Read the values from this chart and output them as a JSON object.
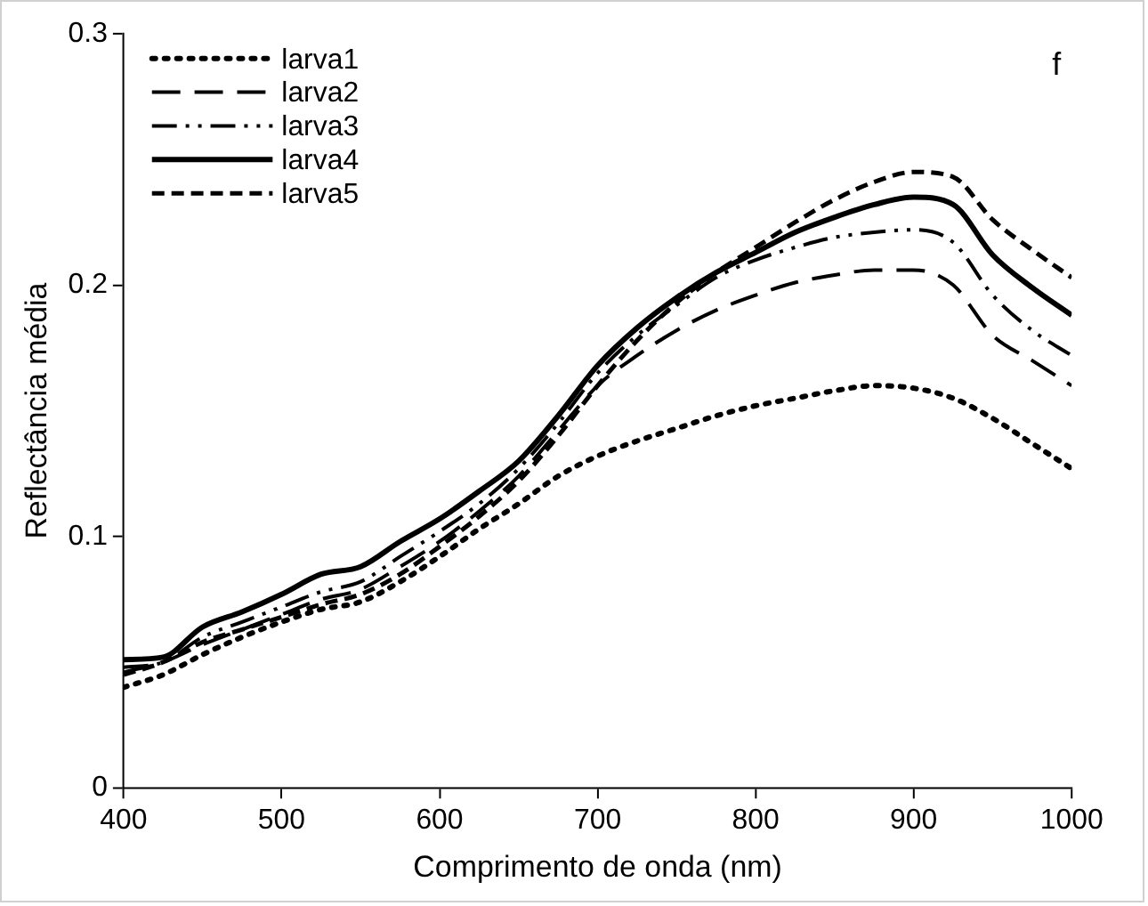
{
  "chart_data": {
    "type": "line",
    "xlabel": "Comprimento de onda (nm)",
    "ylabel": "Reflectância média",
    "annotations": [
      "f"
    ],
    "xlim": [
      400,
      1000
    ],
    "xticks": [
      400,
      500,
      600,
      700,
      800,
      900,
      1000
    ],
    "ylim": [
      0,
      0.3
    ],
    "yticks": [
      0,
      {
        "value": 0.1,
        "label": "0.1"
      },
      {
        "value": 0.2,
        "label": "0.2"
      },
      {
        "value": 0.3,
        "label": "0.3"
      }
    ],
    "grid": false,
    "legend": "top left",
    "marker": "none",
    "x": [
      400,
      425,
      450,
      475,
      500,
      525,
      550,
      575,
      600,
      625,
      650,
      675,
      700,
      725,
      750,
      775,
      800,
      825,
      850,
      875,
      900,
      925,
      950,
      975,
      1000
    ],
    "series": [
      {
        "name": "larva1",
        "color": "#000000",
        "line_style": "dotted",
        "values": [
          0.04,
          0.045,
          0.053,
          0.06,
          0.066,
          0.071,
          0.074,
          0.082,
          0.092,
          0.103,
          0.113,
          0.124,
          0.132,
          0.138,
          0.143,
          0.148,
          0.152,
          0.155,
          0.158,
          0.16,
          0.159,
          0.155,
          0.147,
          0.137,
          0.127
        ]
      },
      {
        "name": "larva2",
        "color": "#000000",
        "line_style": "longdash",
        "values": [
          0.046,
          0.05,
          0.057,
          0.063,
          0.069,
          0.075,
          0.079,
          0.088,
          0.098,
          0.11,
          0.124,
          0.142,
          0.16,
          0.172,
          0.182,
          0.19,
          0.196,
          0.201,
          0.204,
          0.206,
          0.206,
          0.2,
          0.18,
          0.17,
          0.16
        ]
      },
      {
        "name": "larva3",
        "color": "#000000",
        "line_style": "dashdotdot",
        "values": [
          0.048,
          0.05,
          0.06,
          0.066,
          0.072,
          0.078,
          0.082,
          0.092,
          0.102,
          0.113,
          0.127,
          0.145,
          0.165,
          0.18,
          0.192,
          0.203,
          0.21,
          0.215,
          0.219,
          0.221,
          0.222,
          0.217,
          0.196,
          0.182,
          0.172
        ]
      },
      {
        "name": "larva4",
        "color": "#000000",
        "line_style": "solid",
        "values": [
          0.051,
          0.052,
          0.064,
          0.07,
          0.077,
          0.085,
          0.088,
          0.098,
          0.107,
          0.118,
          0.13,
          0.148,
          0.168,
          0.183,
          0.195,
          0.205,
          0.213,
          0.221,
          0.227,
          0.232,
          0.235,
          0.232,
          0.212,
          0.199,
          0.188
        ]
      },
      {
        "name": "larva5",
        "color": "#000000",
        "line_style": "dashed",
        "values": [
          0.045,
          0.05,
          0.058,
          0.063,
          0.068,
          0.073,
          0.077,
          0.085,
          0.096,
          0.108,
          0.122,
          0.14,
          0.16,
          0.178,
          0.193,
          0.205,
          0.215,
          0.225,
          0.234,
          0.241,
          0.245,
          0.243,
          0.226,
          0.214,
          0.203
        ]
      }
    ]
  }
}
